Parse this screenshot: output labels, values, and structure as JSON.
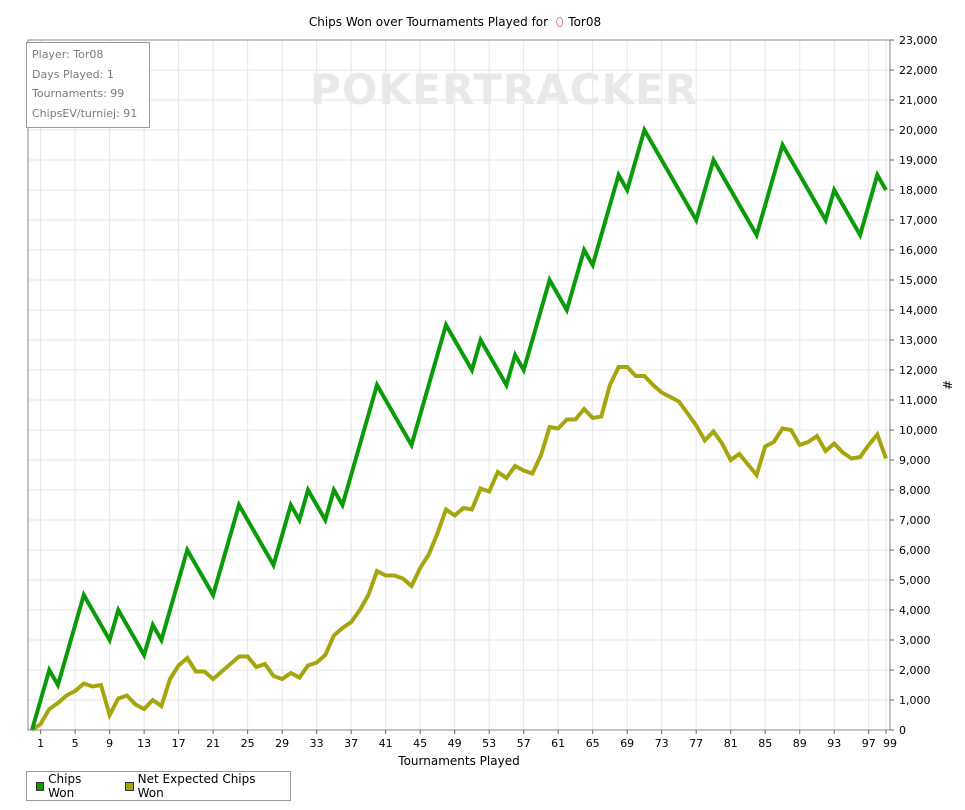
{
  "chart_data": {
    "type": "line",
    "title": "Chips Won over Tournaments Played for",
    "player_name": "Tor08",
    "xlabel": "Tournaments Played",
    "ylabel": "#",
    "xlim": [
      0,
      99
    ],
    "ylim": [
      0,
      23000
    ],
    "x_ticks": [
      1,
      5,
      9,
      13,
      17,
      21,
      25,
      29,
      33,
      37,
      41,
      45,
      49,
      53,
      57,
      61,
      65,
      69,
      73,
      77,
      81,
      85,
      89,
      93,
      97,
      99
    ],
    "y_ticks": [
      "0",
      "1,000",
      "2,000",
      "3,000",
      "4,000",
      "5,000",
      "6,000",
      "7,000",
      "8,000",
      "9,000",
      "10,000",
      "11,000",
      "12,000",
      "13,000",
      "14,000",
      "15,000",
      "16,000",
      "17,000",
      "18,000",
      "19,000",
      "20,000",
      "21,000",
      "22,000",
      "23,000"
    ],
    "grid": true,
    "legend_position": "bottom-left",
    "watermark": "POKERTRACKER",
    "series": [
      {
        "name": "Chips Won",
        "color": "#0a9a0a",
        "points": [
          [
            0,
            0
          ],
          [
            2,
            2000
          ],
          [
            3,
            1500
          ],
          [
            6,
            4500
          ],
          [
            9,
            3000
          ],
          [
            10,
            4000
          ],
          [
            13,
            2500
          ],
          [
            14,
            3500
          ],
          [
            15,
            3000
          ],
          [
            18,
            6000
          ],
          [
            21,
            4500
          ],
          [
            24,
            7500
          ],
          [
            28,
            5500
          ],
          [
            30,
            7500
          ],
          [
            31,
            7000
          ],
          [
            32,
            8000
          ],
          [
            34,
            7000
          ],
          [
            35,
            8000
          ],
          [
            36,
            7500
          ],
          [
            40,
            11500
          ],
          [
            44,
            9500
          ],
          [
            48,
            13500
          ],
          [
            51,
            12000
          ],
          [
            52,
            13000
          ],
          [
            55,
            11500
          ],
          [
            56,
            12500
          ],
          [
            57,
            12000
          ],
          [
            60,
            15000
          ],
          [
            62,
            14000
          ],
          [
            64,
            16000
          ],
          [
            65,
            15500
          ],
          [
            68,
            18500
          ],
          [
            69,
            18000
          ],
          [
            71,
            20000
          ],
          [
            77,
            17000
          ],
          [
            79,
            19000
          ],
          [
            84,
            16500
          ],
          [
            87,
            19500
          ],
          [
            92,
            17000
          ],
          [
            93,
            18000
          ],
          [
            96,
            16500
          ],
          [
            98,
            18500
          ],
          [
            99,
            18000
          ]
        ]
      },
      {
        "name": "Net Expected Chips Won",
        "color": "#a5a50f",
        "points": [
          [
            0,
            0
          ],
          [
            1,
            200
          ],
          [
            2,
            700
          ],
          [
            3,
            900
          ],
          [
            4,
            1150
          ],
          [
            5,
            1300
          ],
          [
            6,
            1550
          ],
          [
            7,
            1450
          ],
          [
            8,
            1500
          ],
          [
            9,
            500
          ],
          [
            10,
            1050
          ],
          [
            11,
            1150
          ],
          [
            12,
            850
          ],
          [
            13,
            700
          ],
          [
            14,
            1000
          ],
          [
            15,
            800
          ],
          [
            16,
            1700
          ],
          [
            17,
            2150
          ],
          [
            18,
            2400
          ],
          [
            19,
            1950
          ],
          [
            20,
            1950
          ],
          [
            21,
            1700
          ],
          [
            22,
            1950
          ],
          [
            23,
            2200
          ],
          [
            24,
            2450
          ],
          [
            25,
            2450
          ],
          [
            26,
            2100
          ],
          [
            27,
            2200
          ],
          [
            28,
            1800
          ],
          [
            29,
            1700
          ],
          [
            30,
            1900
          ],
          [
            31,
            1750
          ],
          [
            32,
            2150
          ],
          [
            33,
            2250
          ],
          [
            34,
            2500
          ],
          [
            35,
            3150
          ],
          [
            36,
            3400
          ],
          [
            37,
            3600
          ],
          [
            38,
            4000
          ],
          [
            39,
            4500
          ],
          [
            40,
            5300
          ],
          [
            41,
            5150
          ],
          [
            42,
            5150
          ],
          [
            43,
            5050
          ],
          [
            44,
            4800
          ],
          [
            45,
            5400
          ],
          [
            46,
            5850
          ],
          [
            47,
            6550
          ],
          [
            48,
            7350
          ],
          [
            49,
            7150
          ],
          [
            50,
            7400
          ],
          [
            51,
            7350
          ],
          [
            52,
            8050
          ],
          [
            53,
            7950
          ],
          [
            54,
            8600
          ],
          [
            55,
            8400
          ],
          [
            56,
            8800
          ],
          [
            57,
            8650
          ],
          [
            58,
            8550
          ],
          [
            59,
            9150
          ],
          [
            60,
            10100
          ],
          [
            61,
            10050
          ],
          [
            62,
            10350
          ],
          [
            63,
            10350
          ],
          [
            64,
            10700
          ],
          [
            65,
            10400
          ],
          [
            66,
            10450
          ],
          [
            67,
            11500
          ],
          [
            68,
            12100
          ],
          [
            69,
            12100
          ],
          [
            70,
            11800
          ],
          [
            71,
            11800
          ],
          [
            72,
            11500
          ],
          [
            73,
            11250
          ],
          [
            74,
            11100
          ],
          [
            75,
            10950
          ],
          [
            76,
            10550
          ],
          [
            77,
            10150
          ],
          [
            78,
            9650
          ],
          [
            79,
            9950
          ],
          [
            80,
            9550
          ],
          [
            81,
            9000
          ],
          [
            82,
            9200
          ],
          [
            83,
            8850
          ],
          [
            84,
            8500
          ],
          [
            85,
            9450
          ],
          [
            86,
            9600
          ],
          [
            87,
            10050
          ],
          [
            88,
            10000
          ],
          [
            89,
            9500
          ],
          [
            90,
            9600
          ],
          [
            91,
            9800
          ],
          [
            92,
            9300
          ],
          [
            93,
            9550
          ],
          [
            94,
            9250
          ],
          [
            95,
            9050
          ],
          [
            96,
            9100
          ],
          [
            97,
            9500
          ],
          [
            98,
            9850
          ],
          [
            99,
            9050
          ]
        ]
      }
    ]
  },
  "info_box": {
    "player": "Player: Tor08",
    "days_played": "Days Played: 1",
    "tournaments": "Tournaments: 99",
    "chips_ev": "ChipsEV/turniej: 91"
  },
  "legend": {
    "items": [
      {
        "label": "Chips Won",
        "color": "#0a9a0a"
      },
      {
        "label": "Net Expected Chips Won",
        "color": "#a5a50f"
      }
    ]
  }
}
